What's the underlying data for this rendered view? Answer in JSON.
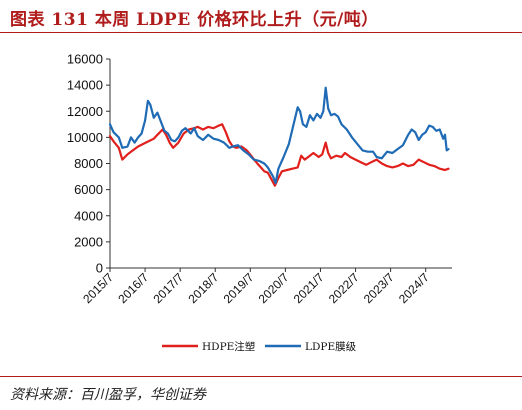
{
  "figure": {
    "title": "图表 131    本周 LDPE 价格环比上升（元/吨）",
    "source": "资料来源：百川盈孚，华创证券"
  },
  "chart_data": {
    "type": "line",
    "title": "",
    "xlabel": "",
    "ylabel": "",
    "ylim": [
      0,
      16000
    ],
    "yticks": [
      0,
      2000,
      4000,
      6000,
      8000,
      10000,
      12000,
      14000,
      16000
    ],
    "ytick_labels": [
      "0",
      "2000",
      "4000",
      "6000",
      "8000",
      "10000",
      "12000",
      "14000",
      "16000"
    ],
    "xlim": [
      2015.5,
      2025.25
    ],
    "xticks": [
      2015.5,
      2016.5,
      2017.5,
      2018.5,
      2019.5,
      2020.5,
      2021.5,
      2022.5,
      2023.5,
      2024.5
    ],
    "xtick_labels": [
      "2015/7",
      "2016/7",
      "2017/7",
      "2018/7",
      "2019/7",
      "2020/7",
      "2021/7",
      "2022/7",
      "2023/7",
      "2024/7"
    ],
    "grid": false,
    "legend_position": "bottom",
    "series": [
      {
        "name": "HDPE注塑",
        "color": "#e0201c",
        "points": [
          [
            2015.5,
            10100
          ],
          [
            2015.6,
            9700
          ],
          [
            2015.75,
            9200
          ],
          [
            2015.85,
            8300
          ],
          [
            2016.0,
            8700
          ],
          [
            2016.15,
            9000
          ],
          [
            2016.3,
            9300
          ],
          [
            2016.45,
            9500
          ],
          [
            2016.6,
            9700
          ],
          [
            2016.75,
            9900
          ],
          [
            2016.85,
            10200
          ],
          [
            2017.0,
            10600
          ],
          [
            2017.1,
            10200
          ],
          [
            2017.2,
            9600
          ],
          [
            2017.3,
            9200
          ],
          [
            2017.45,
            9600
          ],
          [
            2017.6,
            10300
          ],
          [
            2017.75,
            10600
          ],
          [
            2017.9,
            10700
          ],
          [
            2018.0,
            10800
          ],
          [
            2018.15,
            10600
          ],
          [
            2018.3,
            10800
          ],
          [
            2018.45,
            10700
          ],
          [
            2018.6,
            10900
          ],
          [
            2018.7,
            11000
          ],
          [
            2018.8,
            10400
          ],
          [
            2018.9,
            9700
          ],
          [
            2019.0,
            9300
          ],
          [
            2019.1,
            9200
          ],
          [
            2019.25,
            9300
          ],
          [
            2019.4,
            9000
          ],
          [
            2019.55,
            8500
          ],
          [
            2019.7,
            8000
          ],
          [
            2019.8,
            7700
          ],
          [
            2019.9,
            7400
          ],
          [
            2020.0,
            7300
          ],
          [
            2020.1,
            6800
          ],
          [
            2020.2,
            6300
          ],
          [
            2020.3,
            6900
          ],
          [
            2020.4,
            7400
          ],
          [
            2020.55,
            7500
          ],
          [
            2020.7,
            7600
          ],
          [
            2020.85,
            7700
          ],
          [
            2020.95,
            8600
          ],
          [
            2021.05,
            8300
          ],
          [
            2021.15,
            8500
          ],
          [
            2021.3,
            8800
          ],
          [
            2021.45,
            8500
          ],
          [
            2021.55,
            8700
          ],
          [
            2021.65,
            9600
          ],
          [
            2021.72,
            8800
          ],
          [
            2021.8,
            8400
          ],
          [
            2021.95,
            8600
          ],
          [
            2022.1,
            8500
          ],
          [
            2022.2,
            8800
          ],
          [
            2022.35,
            8500
          ],
          [
            2022.5,
            8300
          ],
          [
            2022.65,
            8100
          ],
          [
            2022.8,
            7900
          ],
          [
            2022.95,
            8100
          ],
          [
            2023.1,
            8300
          ],
          [
            2023.25,
            8000
          ],
          [
            2023.4,
            7800
          ],
          [
            2023.55,
            7700
          ],
          [
            2023.7,
            7800
          ],
          [
            2023.85,
            8000
          ],
          [
            2024.0,
            7800
          ],
          [
            2024.15,
            7900
          ],
          [
            2024.3,
            8300
          ],
          [
            2024.45,
            8100
          ],
          [
            2024.6,
            7900
          ],
          [
            2024.75,
            7800
          ],
          [
            2024.9,
            7600
          ],
          [
            2025.05,
            7500
          ],
          [
            2025.15,
            7600
          ]
        ]
      },
      {
        "name": "LDPE膜级",
        "color": "#1f6bb5",
        "points": [
          [
            2015.5,
            11000
          ],
          [
            2015.6,
            10400
          ],
          [
            2015.75,
            10000
          ],
          [
            2015.85,
            9200
          ],
          [
            2016.0,
            9300
          ],
          [
            2016.1,
            10000
          ],
          [
            2016.2,
            9600
          ],
          [
            2016.3,
            10000
          ],
          [
            2016.4,
            10300
          ],
          [
            2016.5,
            11300
          ],
          [
            2016.58,
            12800
          ],
          [
            2016.65,
            12500
          ],
          [
            2016.75,
            11500
          ],
          [
            2016.85,
            11900
          ],
          [
            2016.95,
            11200
          ],
          [
            2017.05,
            10500
          ],
          [
            2017.15,
            10300
          ],
          [
            2017.25,
            9800
          ],
          [
            2017.35,
            9700
          ],
          [
            2017.45,
            10000
          ],
          [
            2017.55,
            10500
          ],
          [
            2017.65,
            10700
          ],
          [
            2017.8,
            10300
          ],
          [
            2017.9,
            10700
          ],
          [
            2018.0,
            10100
          ],
          [
            2018.15,
            9800
          ],
          [
            2018.3,
            10200
          ],
          [
            2018.45,
            9900
          ],
          [
            2018.6,
            9800
          ],
          [
            2018.75,
            9600
          ],
          [
            2018.9,
            9200
          ],
          [
            2019.0,
            9300
          ],
          [
            2019.15,
            9400
          ],
          [
            2019.3,
            9000
          ],
          [
            2019.45,
            8700
          ],
          [
            2019.6,
            8300
          ],
          [
            2019.75,
            8200
          ],
          [
            2019.9,
            8000
          ],
          [
            2020.0,
            7700
          ],
          [
            2020.15,
            7000
          ],
          [
            2020.22,
            6500
          ],
          [
            2020.3,
            7600
          ],
          [
            2020.45,
            8500
          ],
          [
            2020.6,
            9500
          ],
          [
            2020.75,
            11200
          ],
          [
            2020.85,
            12300
          ],
          [
            2020.92,
            12000
          ],
          [
            2021.0,
            11000
          ],
          [
            2021.1,
            10800
          ],
          [
            2021.2,
            11700
          ],
          [
            2021.3,
            11300
          ],
          [
            2021.4,
            11800
          ],
          [
            2021.5,
            11500
          ],
          [
            2021.58,
            12000
          ],
          [
            2021.65,
            13800
          ],
          [
            2021.72,
            12200
          ],
          [
            2021.8,
            11700
          ],
          [
            2021.9,
            11800
          ],
          [
            2022.0,
            11600
          ],
          [
            2022.1,
            11000
          ],
          [
            2022.25,
            10600
          ],
          [
            2022.4,
            10000
          ],
          [
            2022.55,
            9500
          ],
          [
            2022.7,
            9000
          ],
          [
            2022.85,
            8900
          ],
          [
            2023.0,
            8900
          ],
          [
            2023.1,
            8500
          ],
          [
            2023.25,
            8400
          ],
          [
            2023.4,
            8900
          ],
          [
            2023.55,
            8800
          ],
          [
            2023.7,
            9100
          ],
          [
            2023.85,
            9400
          ],
          [
            2024.0,
            10200
          ],
          [
            2024.1,
            10600
          ],
          [
            2024.2,
            10400
          ],
          [
            2024.3,
            9800
          ],
          [
            2024.4,
            10200
          ],
          [
            2024.5,
            10400
          ],
          [
            2024.6,
            10900
          ],
          [
            2024.7,
            10800
          ],
          [
            2024.8,
            10500
          ],
          [
            2024.9,
            10600
          ],
          [
            2025.0,
            9900
          ],
          [
            2025.05,
            10200
          ],
          [
            2025.1,
            9000
          ],
          [
            2025.15,
            9100
          ]
        ]
      }
    ]
  }
}
